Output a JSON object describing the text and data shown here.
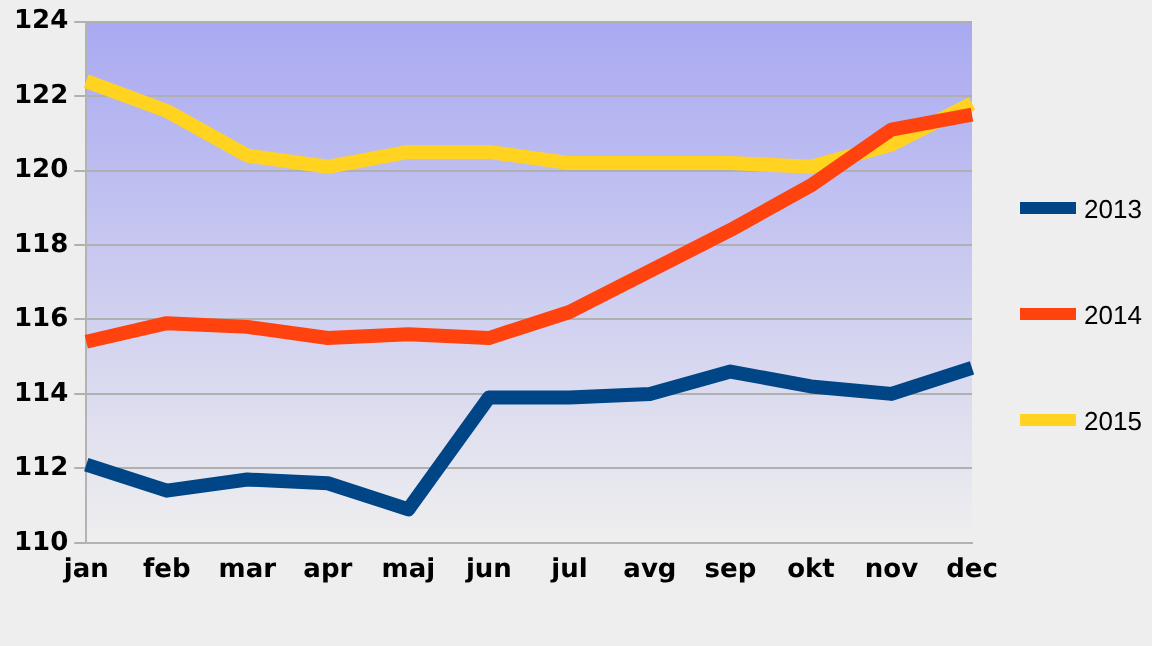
{
  "chart_data": {
    "type": "line",
    "categories": [
      "jan",
      "feb",
      "mar",
      "apr",
      "maj",
      "jun",
      "jul",
      "avg",
      "sep",
      "okt",
      "nov",
      "dec"
    ],
    "series": [
      {
        "name": "2013",
        "color": "#004586",
        "values": [
          112.1,
          111.4,
          111.7,
          111.6,
          110.9,
          113.9,
          113.9,
          114.0,
          114.6,
          114.2,
          114.0,
          114.7
        ]
      },
      {
        "name": "2014",
        "color": "#ff420e",
        "values": [
          115.4,
          115.9,
          115.8,
          115.5,
          115.6,
          115.5,
          116.2,
          117.3,
          118.4,
          119.6,
          121.1,
          121.5
        ]
      },
      {
        "name": "2015",
        "color": "#ffd320",
        "values": [
          122.4,
          121.6,
          120.4,
          120.1,
          120.5,
          120.5,
          120.2,
          120.2,
          120.2,
          120.1,
          120.7,
          121.8
        ]
      }
    ],
    "ylim": [
      110,
      124
    ],
    "yticks": [
      110,
      112,
      114,
      116,
      118,
      120,
      122,
      124
    ],
    "grid": "y",
    "legend": "right",
    "marker": "none",
    "line_style": "solid"
  }
}
